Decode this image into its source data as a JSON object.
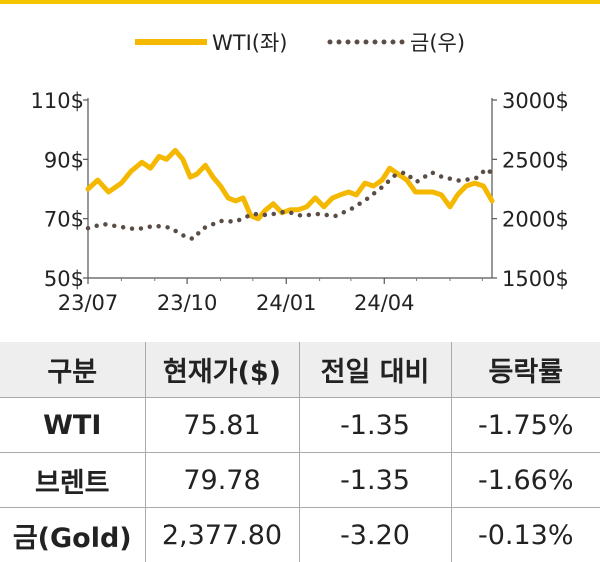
{
  "chart_data": {
    "type": "line",
    "x_ticks": [
      "23/07",
      "23/10",
      "24/01",
      "24/04"
    ],
    "y_left": {
      "ticks": [
        "110$",
        "90$",
        "70$",
        "50$"
      ],
      "values": [
        110,
        90,
        70,
        50
      ],
      "range": [
        50,
        110
      ]
    },
    "y_right": {
      "ticks": [
        "3000$",
        "2500$",
        "2000$",
        "1500$"
      ],
      "values": [
        3000,
        2500,
        2000,
        1500
      ],
      "range": [
        1500,
        3000
      ]
    },
    "x_range": [
      "2023-07-01",
      "2024-07-10"
    ],
    "grid": false,
    "legend_position": "top",
    "series": [
      {
        "name": "WTI(좌)",
        "axis": "left",
        "style": "solid",
        "color": "#f5b800",
        "points": [
          [
            "2023-07-01",
            80.0
          ],
          [
            "2023-07-10",
            83.0
          ],
          [
            "2023-07-20",
            79.0
          ],
          [
            "2023-08-01",
            82.0
          ],
          [
            "2023-08-10",
            86.0
          ],
          [
            "2023-08-20",
            89.0
          ],
          [
            "2023-08-28",
            87.0
          ],
          [
            "2023-09-05",
            91.0
          ],
          [
            "2023-09-12",
            90.0
          ],
          [
            "2023-09-20",
            93.0
          ],
          [
            "2023-09-27",
            90.0
          ],
          [
            "2023-10-04",
            84.0
          ],
          [
            "2023-10-10",
            85.0
          ],
          [
            "2023-10-18",
            88.0
          ],
          [
            "2023-10-25",
            84.0
          ],
          [
            "2023-11-01",
            81.0
          ],
          [
            "2023-11-08",
            77.0
          ],
          [
            "2023-11-15",
            76.0
          ],
          [
            "2023-11-22",
            77.0
          ],
          [
            "2023-11-29",
            71.0
          ],
          [
            "2023-12-06",
            70.0
          ],
          [
            "2023-12-13",
            73.0
          ],
          [
            "2023-12-20",
            75.0
          ],
          [
            "2023-12-28",
            72.0
          ],
          [
            "2024-01-05",
            73.0
          ],
          [
            "2024-01-12",
            73.0
          ],
          [
            "2024-01-20",
            74.0
          ],
          [
            "2024-01-28",
            77.0
          ],
          [
            "2024-02-05",
            74.0
          ],
          [
            "2024-02-13",
            77.0
          ],
          [
            "2024-02-20",
            78.0
          ],
          [
            "2024-02-28",
            79.0
          ],
          [
            "2024-03-06",
            78.0
          ],
          [
            "2024-03-14",
            82.0
          ],
          [
            "2024-03-22",
            81.0
          ],
          [
            "2024-03-30",
            83.0
          ],
          [
            "2024-04-06",
            87.0
          ],
          [
            "2024-04-14",
            85.0
          ],
          [
            "2024-04-22",
            83.0
          ],
          [
            "2024-04-30",
            79.0
          ],
          [
            "2024-05-08",
            79.0
          ],
          [
            "2024-05-16",
            79.0
          ],
          [
            "2024-05-24",
            78.0
          ],
          [
            "2024-06-01",
            74.0
          ],
          [
            "2024-06-08",
            78.0
          ],
          [
            "2024-06-16",
            81.0
          ],
          [
            "2024-06-24",
            82.0
          ],
          [
            "2024-07-02",
            81.0
          ],
          [
            "2024-07-10",
            76.0
          ]
        ]
      },
      {
        "name": "금(우)",
        "axis": "right",
        "style": "dotted",
        "color": "#5a4d45",
        "points": [
          [
            "2023-07-01",
            1920
          ],
          [
            "2023-07-15",
            1955
          ],
          [
            "2023-08-01",
            1930
          ],
          [
            "2023-08-15",
            1910
          ],
          [
            "2023-09-01",
            1940
          ],
          [
            "2023-09-15",
            1925
          ],
          [
            "2023-10-01",
            1840
          ],
          [
            "2023-10-07",
            1830
          ],
          [
            "2023-10-15",
            1915
          ],
          [
            "2023-11-01",
            1980
          ],
          [
            "2023-11-15",
            1975
          ],
          [
            "2023-12-01",
            2040
          ],
          [
            "2023-12-15",
            2030
          ],
          [
            "2024-01-01",
            2060
          ],
          [
            "2024-01-15",
            2025
          ],
          [
            "2024-02-01",
            2040
          ],
          [
            "2024-02-15",
            2020
          ],
          [
            "2024-03-01",
            2080
          ],
          [
            "2024-03-15",
            2160
          ],
          [
            "2024-04-01",
            2280
          ],
          [
            "2024-04-10",
            2360
          ],
          [
            "2024-04-20",
            2390
          ],
          [
            "2024-05-01",
            2310
          ],
          [
            "2024-05-15",
            2390
          ],
          [
            "2024-05-25",
            2350
          ],
          [
            "2024-06-10",
            2320
          ],
          [
            "2024-06-25",
            2340
          ],
          [
            "2024-07-05",
            2420
          ],
          [
            "2024-07-10",
            2380
          ]
        ]
      }
    ]
  },
  "table": {
    "headers": [
      "구분",
      "현재가($)",
      "전일 대비",
      "등락률"
    ],
    "rows": [
      [
        "WTI",
        "75.81",
        "-1.35",
        "-1.75%"
      ],
      [
        "브렌트",
        "79.78",
        "-1.35",
        "-1.66%"
      ],
      [
        "금(Gold)",
        "2,377.80",
        "-3.20",
        "-0.13%"
      ]
    ]
  }
}
